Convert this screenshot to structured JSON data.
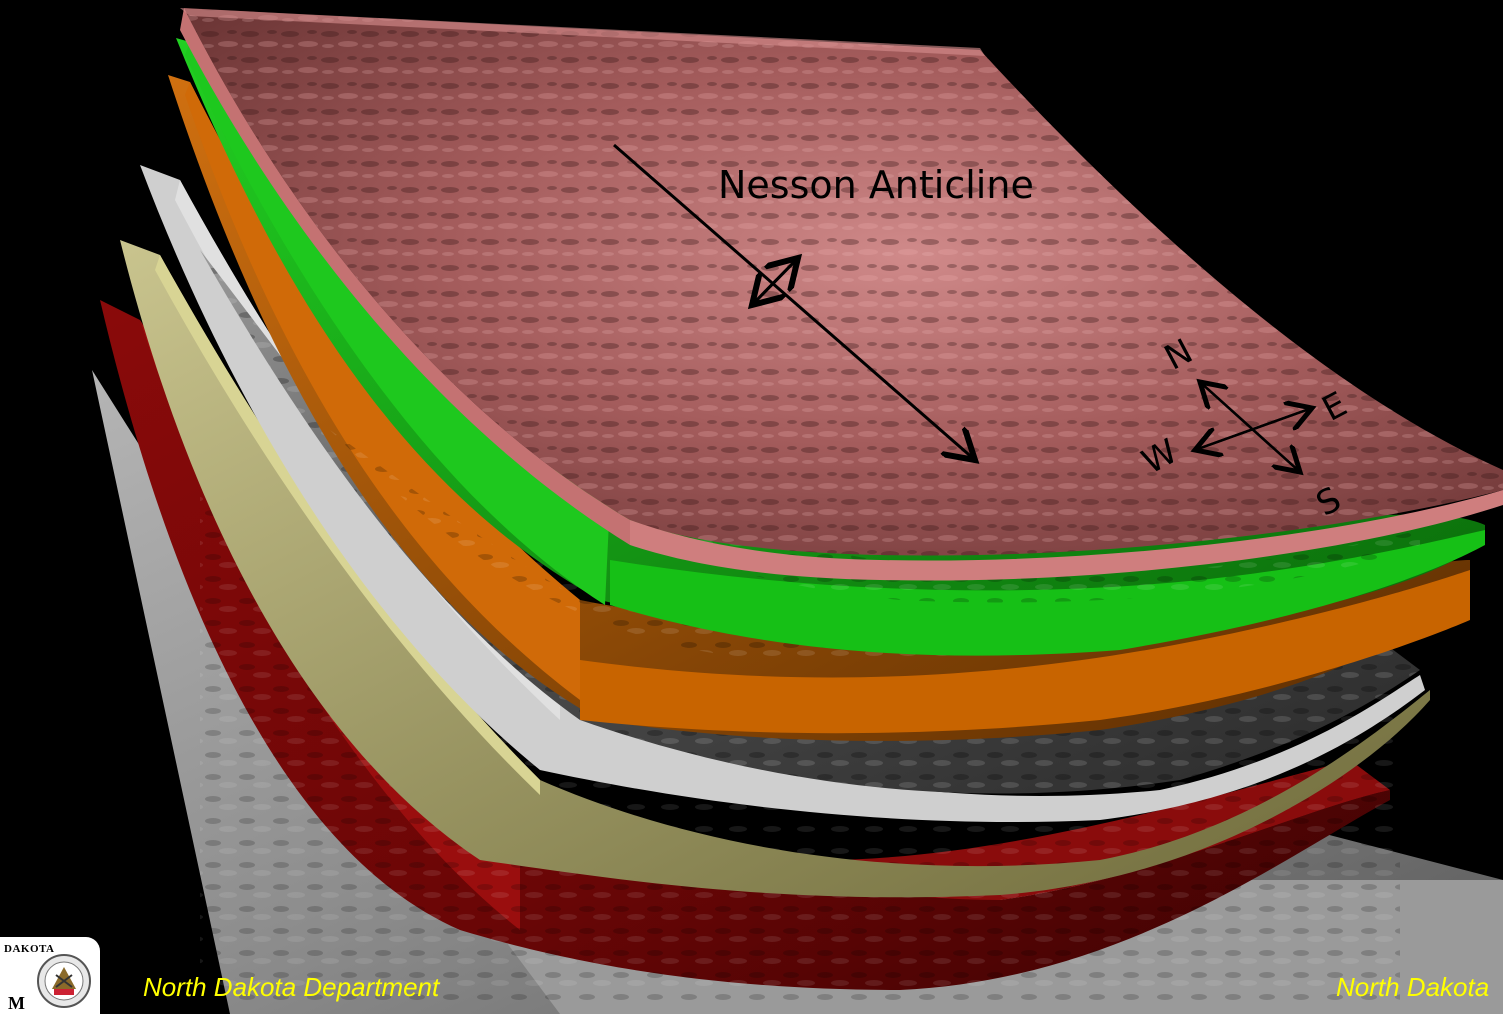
{
  "figure": {
    "annotation": "Nesson Anticline",
    "compass": {
      "north": "N",
      "east": "E",
      "south": "S",
      "west": "W"
    },
    "footer_left": "North Dakota Department",
    "footer_right": "North Dakota",
    "logo": {
      "top_text": "DAKOTA",
      "bottom_text": "M"
    },
    "colors": {
      "background": "#000000",
      "top_surface": "#b86a6a",
      "green_layer": "#19c219",
      "orange_layer": "#c86400",
      "silver_layer": "#c8c8c8",
      "olive_layer": "#c8c48a",
      "red_layer": "#a01010",
      "gray_base": "#8c8c8c",
      "footer_text": "#ffff00"
    }
  }
}
